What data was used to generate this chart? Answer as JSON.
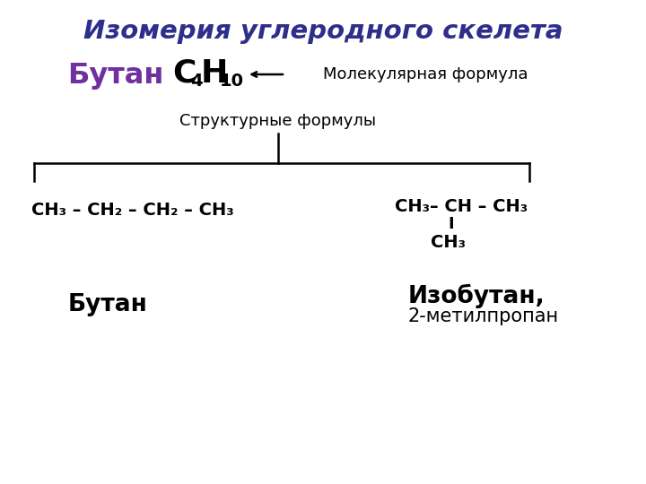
{
  "title": "Изомерия углеродного скелета",
  "title_color": "#2e2e8b",
  "background_color": "#ffffff",
  "butane_label": "Бутан",
  "purple_color": "#7030a0",
  "mol_formula_text": "Молекулярная формула",
  "structural_formulas_label": "Структурные формулы",
  "formula1": "CH₃ – CH₂ – CH₂ – CH₃",
  "formula2_line1": "CH₃– CH – CH₃",
  "formula2_pipe": "I",
  "formula2_ch3": "CH₃",
  "name1": "Бутан",
  "name2_line1": "Изобутан,",
  "name2_line2": "2-метилпропан",
  "black": "#000000"
}
